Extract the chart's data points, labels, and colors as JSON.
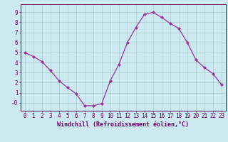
{
  "x": [
    0,
    1,
    2,
    3,
    4,
    5,
    6,
    7,
    8,
    9,
    10,
    11,
    12,
    13,
    14,
    15,
    16,
    17,
    18,
    19,
    20,
    21,
    22,
    23
  ],
  "y": [
    5.0,
    4.6,
    4.1,
    3.2,
    2.2,
    1.5,
    0.9,
    -0.3,
    -0.3,
    -0.1,
    2.2,
    3.8,
    6.0,
    7.5,
    8.8,
    9.0,
    8.5,
    7.9,
    7.4,
    6.0,
    4.3,
    3.5,
    2.9,
    1.8
  ],
  "line_color": "#993399",
  "marker": "D",
  "marker_size": 2.0,
  "bg_color": "#cce8f0",
  "grid_color": "#aacccc",
  "axis_color": "#660066",
  "xlabel": "Windchill (Refroidissement éolien,°C)",
  "xlim": [
    -0.5,
    23.5
  ],
  "ylim": [
    -0.8,
    9.8
  ],
  "yticks": [
    0,
    1,
    2,
    3,
    4,
    5,
    6,
    7,
    8,
    9
  ],
  "ytick_labels": [
    "-0",
    "1",
    "2",
    "3",
    "4",
    "5",
    "6",
    "7",
    "8",
    "9"
  ],
  "xticks": [
    0,
    1,
    2,
    3,
    4,
    5,
    6,
    7,
    8,
    9,
    10,
    11,
    12,
    13,
    14,
    15,
    16,
    17,
    18,
    19,
    20,
    21,
    22,
    23
  ],
  "tick_fontsize": 5.5,
  "label_fontsize": 6.0
}
